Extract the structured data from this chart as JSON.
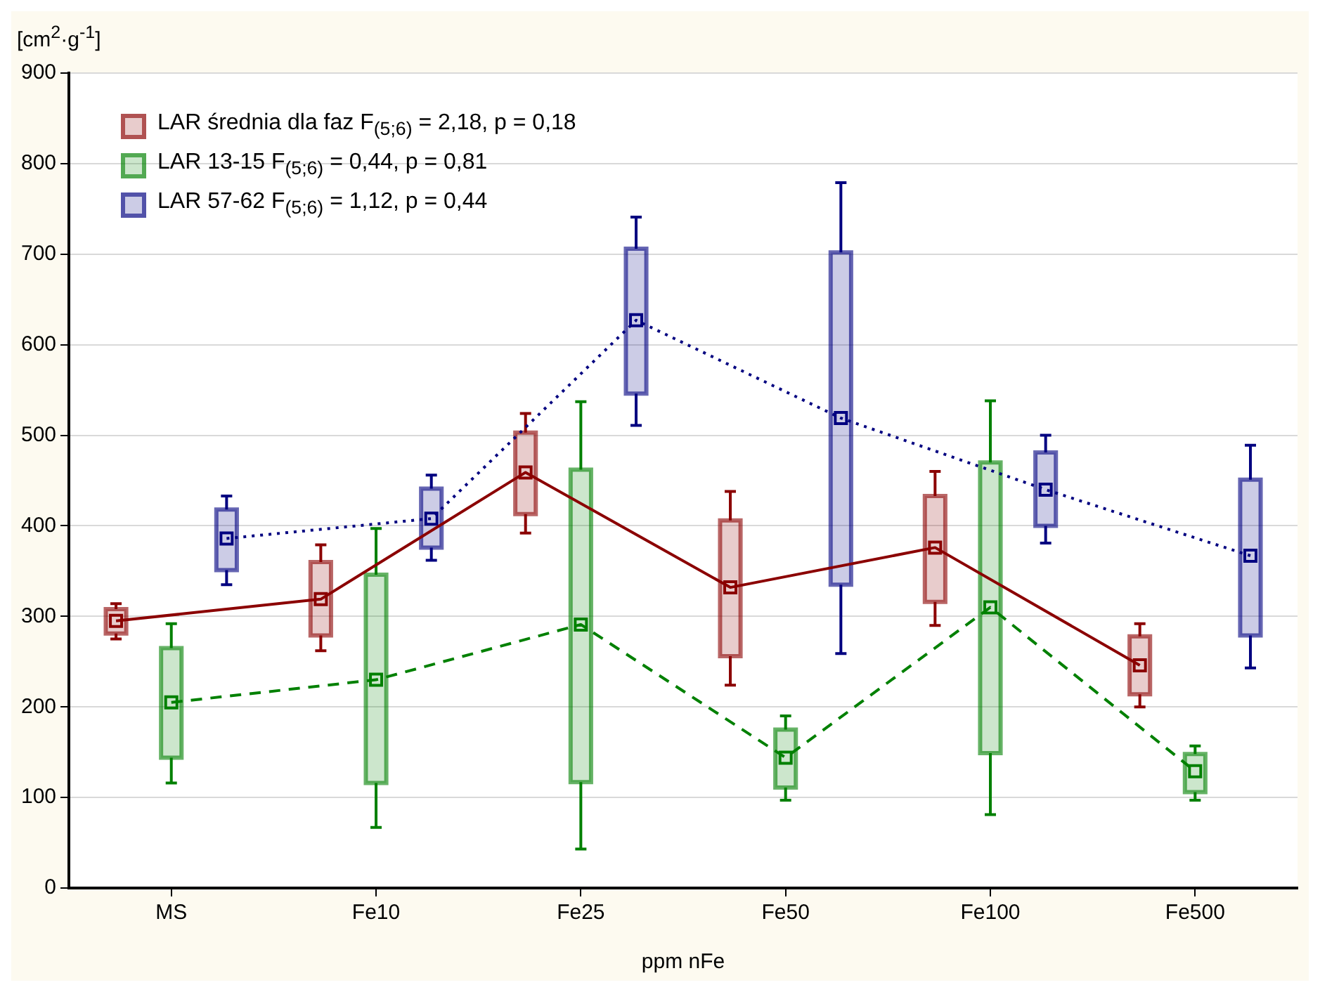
{
  "chart_data": {
    "type": "box",
    "ylabel": "[cm$^{2}$·g$^{-1}$]",
    "xlabel": "ppm nFe",
    "categories": [
      "MS",
      "Fe10",
      "Fe25",
      "Fe50",
      "Fe100",
      "Fe500"
    ],
    "ylim": [
      0,
      900
    ],
    "yticks": [
      0,
      100,
      200,
      300,
      400,
      500,
      600,
      700,
      800,
      900
    ],
    "grid": "y",
    "legend": "top left",
    "series": [
      {
        "name": "LAR średnia dla faz F$_{(5;6)}$ = 2,18, p = 0,18",
        "color": "#8b0000",
        "boxes": [
          {
            "low": 275,
            "q1": 281,
            "median": 295,
            "q3": 308,
            "high": 314
          },
          {
            "low": 262,
            "q1": 279,
            "median": 319,
            "q3": 360,
            "high": 379
          },
          {
            "low": 392,
            "q1": 413,
            "median": 459,
            "q3": 503,
            "high": 524
          },
          {
            "low": 224,
            "q1": 256,
            "median": 332,
            "q3": 406,
            "high": 438
          },
          {
            "low": 290,
            "q1": 316,
            "median": 376,
            "q3": 433,
            "high": 460
          },
          {
            "low": 200,
            "q1": 214,
            "median": 246,
            "q3": 278,
            "high": 292
          }
        ]
      },
      {
        "name": "LAR 13-15 F$_{(5;6)}$ = 0,44, p = 0,81",
        "color": "#008000",
        "boxes": [
          {
            "low": 116,
            "q1": 144,
            "median": 205,
            "q3": 265,
            "high": 292
          },
          {
            "low": 67,
            "q1": 116,
            "median": 230,
            "q3": 346,
            "high": 397
          },
          {
            "low": 43,
            "q1": 117,
            "median": 291,
            "q3": 462,
            "high": 537
          },
          {
            "low": 97,
            "q1": 111,
            "median": 144,
            "q3": 175,
            "high": 190
          },
          {
            "low": 81,
            "q1": 149,
            "median": 310,
            "q3": 470,
            "high": 538
          },
          {
            "low": 97,
            "q1": 106,
            "median": 129,
            "q3": 148,
            "high": 157
          }
        ]
      },
      {
        "name": "LAR 57-62 F$_{(5;6)}$ = 1,12, p = 0,44",
        "color": "#000080",
        "boxes": [
          {
            "low": 335,
            "q1": 351,
            "median": 386,
            "q3": 418,
            "high": 433
          },
          {
            "low": 362,
            "q1": 376,
            "median": 408,
            "q3": 441,
            "high": 456
          },
          {
            "low": 511,
            "q1": 546,
            "median": 627,
            "q3": 706,
            "high": 741
          },
          {
            "low": 259,
            "q1": 335,
            "median": 519,
            "q3": 702,
            "high": 779
          },
          {
            "low": 381,
            "q1": 400,
            "median": 440,
            "q3": 481,
            "high": 500
          },
          {
            "low": 243,
            "q1": 279,
            "median": 367,
            "q3": 451,
            "high": 489
          }
        ]
      },
      {
        "type": "line",
        "color": "#8b0000",
        "line_style": "solid",
        "values": [
          295,
          319,
          459,
          332,
          376,
          246
        ]
      },
      {
        "type": "line",
        "color": "#008000",
        "line_style": "dashed",
        "values": [
          205,
          230,
          291,
          144,
          310,
          129
        ]
      },
      {
        "type": "line",
        "color": "#000080",
        "line_style": "dotted",
        "values": [
          386,
          408,
          627,
          519,
          440,
          367
        ]
      }
    ]
  }
}
